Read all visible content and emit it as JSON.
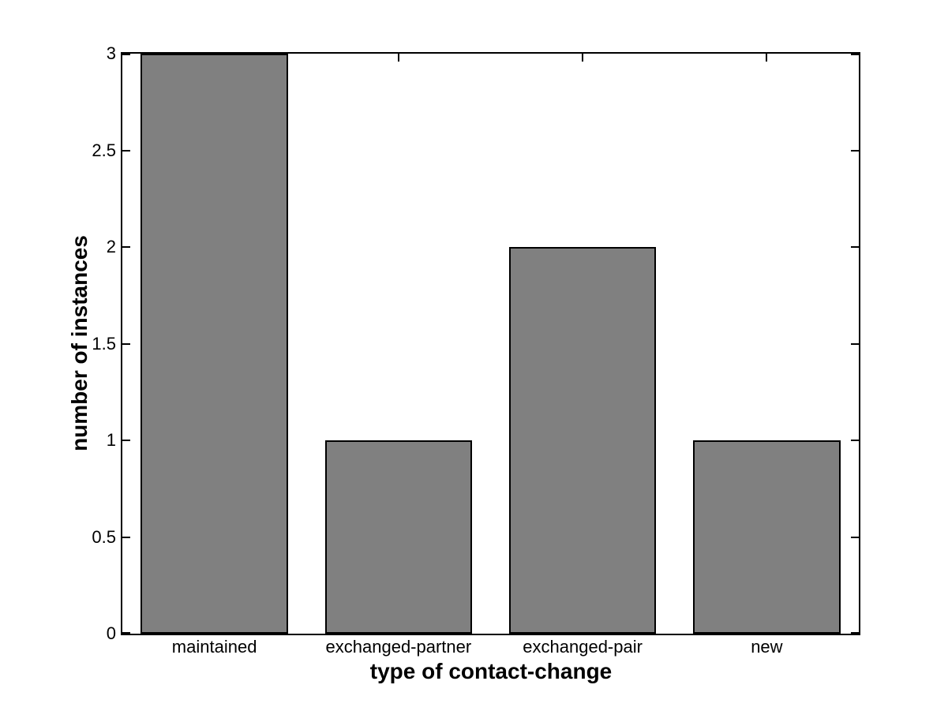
{
  "chart_data": {
    "type": "bar",
    "categories": [
      "maintained",
      "exchanged-partner",
      "exchanged-pair",
      "new"
    ],
    "values": [
      3,
      1,
      2,
      1
    ],
    "xlabel": "type of contact-change",
    "ylabel": "number of instances",
    "yticks": [
      0,
      0.5,
      1,
      1.5,
      2,
      2.5,
      3
    ],
    "ytick_labels": [
      "0",
      "0.5",
      "1",
      "1.5",
      "2",
      "2.5",
      "3"
    ],
    "ylim": [
      0,
      3
    ],
    "grid": false,
    "legend_position": "none",
    "colors": {
      "bar_fill": "#808080",
      "bar_edge": "#000000",
      "axis": "#000000",
      "text": "#000000",
      "background": "#ffffff"
    }
  }
}
